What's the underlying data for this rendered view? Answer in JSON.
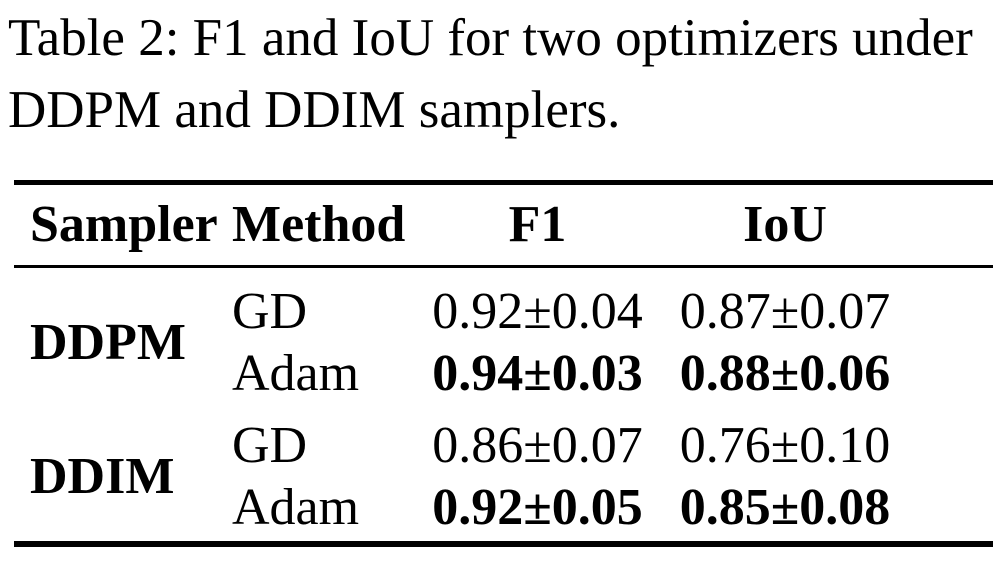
{
  "caption": "Table 2: F1 and IoU for two optimizers under DDPM and DDIM samplers.",
  "table": {
    "headers": [
      "Sampler",
      "Method",
      "F1",
      "IoU"
    ],
    "groups": [
      {
        "sampler": "DDPM",
        "rows": [
          {
            "method": "GD",
            "f1": "0.92±0.04",
            "iou": "0.87±0.07",
            "bold": false
          },
          {
            "method": "Adam",
            "f1": "0.94±0.03",
            "iou": "0.88±0.06",
            "bold": true
          }
        ]
      },
      {
        "sampler": "DDIM",
        "rows": [
          {
            "method": "GD",
            "f1": "0.86±0.07",
            "iou": "0.76±0.10",
            "bold": false
          },
          {
            "method": "Adam",
            "f1": "0.92±0.05",
            "iou": "0.85±0.08",
            "bold": true
          }
        ]
      }
    ]
  },
  "colors": {
    "text": "#000000",
    "background": "#ffffff",
    "rule": "#000000"
  }
}
